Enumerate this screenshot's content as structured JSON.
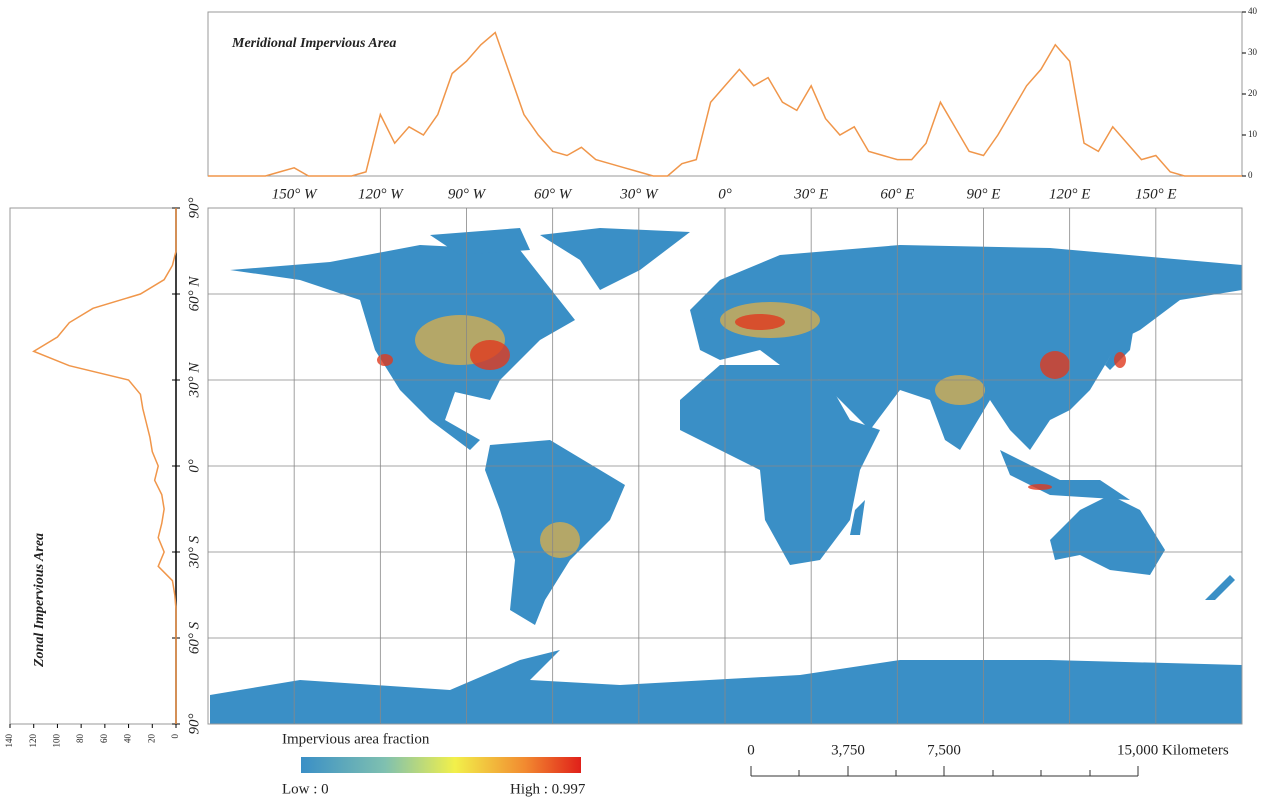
{
  "map": {
    "lon_ticks": [
      {
        "value": -150,
        "label": "150° W"
      },
      {
        "value": -120,
        "label": "120° W"
      },
      {
        "value": -90,
        "label": "90° W"
      },
      {
        "value": -60,
        "label": "60° W"
      },
      {
        "value": -30,
        "label": "30° W"
      },
      {
        "value": 0,
        "label": "0°"
      },
      {
        "value": 30,
        "label": "30° E"
      },
      {
        "value": 60,
        "label": "60° E"
      },
      {
        "value": 90,
        "label": "90° E"
      },
      {
        "value": 120,
        "label": "120° E"
      },
      {
        "value": 150,
        "label": "150° E"
      }
    ],
    "lat_ticks": [
      {
        "value": 90,
        "label": "90°"
      },
      {
        "value": 60,
        "label": "60° N"
      },
      {
        "value": 30,
        "label": "30° N"
      },
      {
        "value": 0,
        "label": "0°"
      },
      {
        "value": -30,
        "label": "30° S"
      },
      {
        "value": -60,
        "label": "60° S"
      },
      {
        "value": -90,
        "label": "90°"
      }
    ],
    "lonlim": [
      -180,
      180
    ],
    "latlim": [
      -90,
      90
    ],
    "legend": {
      "title": "Impervious area fraction",
      "low": "Low : 0",
      "high": "High : 0.997"
    },
    "scale_bar": {
      "labels": [
        "0",
        "3,750",
        "7,500",
        "15,000 Kilometers"
      ]
    }
  },
  "chart_data": [
    {
      "type": "line",
      "title": "Meridional Impervious Area",
      "color": "#f0964a",
      "x": [
        -180,
        -175,
        -170,
        -165,
        -160,
        -155,
        -150,
        -145,
        -140,
        -135,
        -130,
        -125,
        -120,
        -115,
        -110,
        -105,
        -100,
        -95,
        -90,
        -85,
        -80,
        -75,
        -70,
        -65,
        -60,
        -55,
        -50,
        -45,
        -40,
        -35,
        -30,
        -25,
        -20,
        -15,
        -10,
        -5,
        0,
        5,
        10,
        15,
        20,
        25,
        30,
        35,
        40,
        45,
        50,
        55,
        60,
        65,
        70,
        75,
        80,
        85,
        90,
        95,
        100,
        105,
        110,
        115,
        120,
        125,
        130,
        135,
        140,
        145,
        150,
        155,
        160,
        165,
        170,
        175,
        180
      ],
      "values": [
        0,
        0,
        0,
        0,
        0,
        1,
        2,
        0,
        0,
        0,
        0,
        1,
        15,
        8,
        12,
        10,
        15,
        25,
        28,
        32,
        35,
        25,
        15,
        10,
        6,
        5,
        7,
        4,
        3,
        2,
        1,
        0,
        0,
        3,
        4,
        18,
        22,
        26,
        22,
        24,
        18,
        16,
        22,
        14,
        10,
        12,
        6,
        5,
        4,
        4,
        8,
        18,
        12,
        6,
        5,
        10,
        16,
        22,
        26,
        32,
        28,
        8,
        6,
        12,
        8,
        4,
        5,
        1,
        0,
        0,
        0,
        0,
        0
      ],
      "xlim": [
        -180,
        180
      ],
      "ylim": [
        0,
        40
      ],
      "yticks": [
        0,
        10,
        20,
        30,
        40
      ]
    },
    {
      "type": "line",
      "title": "Zonal Impervious Area",
      "color": "#f0964a",
      "y": [
        90,
        85,
        80,
        75,
        70,
        65,
        60,
        55,
        50,
        45,
        40,
        35,
        30,
        25,
        20,
        15,
        10,
        5,
        0,
        -5,
        -10,
        -15,
        -20,
        -25,
        -30,
        -35,
        -40,
        -45,
        -50,
        -55,
        -60,
        -65,
        -70,
        -75,
        -80,
        -85,
        -90
      ],
      "values": [
        0,
        0,
        0,
        0,
        3,
        10,
        30,
        70,
        90,
        100,
        120,
        90,
        40,
        30,
        28,
        25,
        22,
        20,
        15,
        18,
        12,
        10,
        12,
        15,
        10,
        15,
        3,
        1,
        0,
        0,
        0,
        0,
        0,
        0,
        0,
        0,
        0
      ],
      "ylim": [
        -90,
        90
      ],
      "xlim": [
        0,
        140
      ],
      "xticks": [
        0,
        20,
        40,
        60,
        80,
        100,
        120,
        140
      ]
    }
  ]
}
